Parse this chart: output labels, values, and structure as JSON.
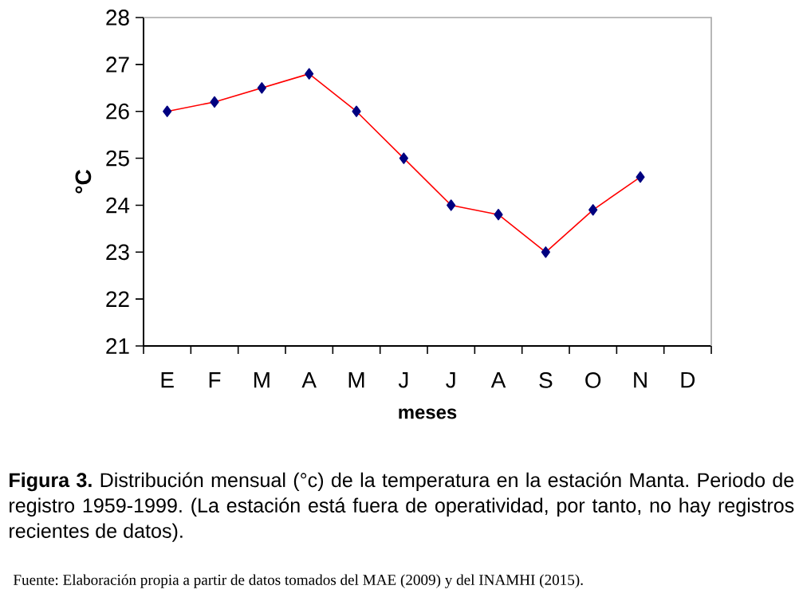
{
  "chart_data": {
    "type": "line",
    "xlabel": "meses",
    "ylabel": "°C",
    "categories": [
      "E",
      "F",
      "M",
      "A",
      "M",
      "J",
      "J",
      "A",
      "S",
      "O",
      "N",
      "D"
    ],
    "values": [
      26.0,
      26.2,
      26.5,
      26.8,
      26.0,
      25.0,
      24.0,
      23.8,
      23.0,
      23.9,
      24.6,
      null
    ],
    "color": "#ff0000",
    "marker": "diamond",
    "line_style": "solid",
    "ylim": [
      21,
      28
    ],
    "yticks": [
      21,
      22,
      23,
      24,
      25,
      26,
      27,
      28
    ],
    "annotations": [
      "**Figura 3.** Distribución mensual (°c) de la temperatura en la estación Manta. Periodo de registro 1959-1999. (La estación está fuera de operatividad, por tanto, no hay registros recientes de datos).",
      "Fuente: Elaboración propia a partir de datos tomados del MAE (2009) y del INAMHI (2015)."
    ]
  }
}
